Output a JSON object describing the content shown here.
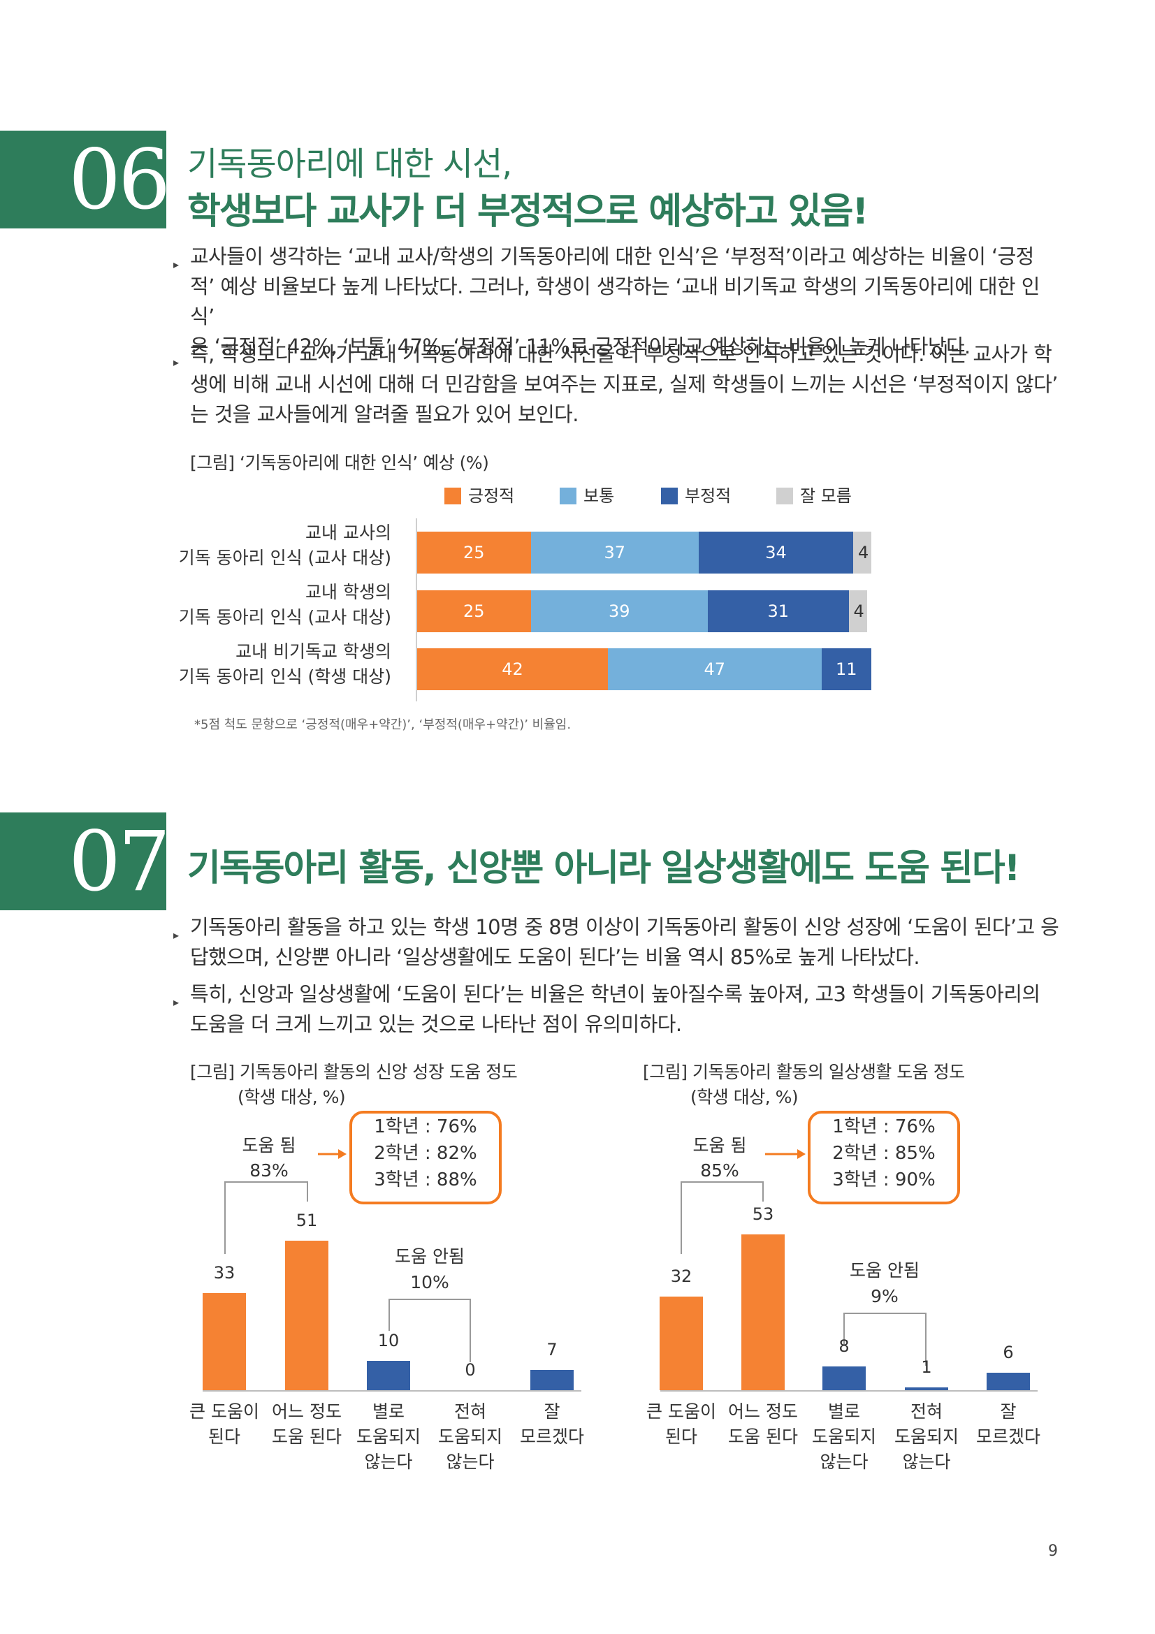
{
  "section06": {
    "number": "06",
    "title_line1": "기독동아리에 대한 시선,",
    "title_line2": "학생보다 교사가 더 부정적으로 예상하고 있음!",
    "paragraphs": [
      [
        "교사들이 생각하는 ‘교내 교사/학생의 기독동아리에 대한 인식’은 ‘부정적’이라고 예상하는 비율이 ‘긍정",
        "적’ 예상 비율보다 높게 나타났다. 그러나, 학생이 생각하는 ‘교내 비기독교 학생의 기독동아리에 대한 인식’",
        "은 ‘긍정적’ 42%, ‘보통’ 47%, ‘부정적’ 11%로 긍정적이라고 예상하는 비율이 높게 나타났다."
      ],
      [
        "즉, 학생보다 교사가 교내 기독동아리에 대한 시선을 더 부정적으로 인식하고 있는 것이다. 이는 교사가 학",
        "생에 비해 교내 시선에 대해 더 민감함을 보여주는 지표로, 실제 학생들이 느끼는 시선은 ‘부정적이지 않다’",
        "는 것을 교사들에게 알려줄 필요가 있어 보인다."
      ]
    ],
    "figure_caption": "[그림] ‘기독동아리에 대한 인식’ 예상 (%)",
    "footnote": "*5점 척도 문항으로 ‘긍정적(매우+약간)’, ‘부정적(매우+약간)’ 비율임.",
    "chart_data": {
      "type": "bar",
      "orientation": "horizontal-stacked",
      "categories": [
        [
          "교내 교사의",
          "기독 동아리 인식 (교사 대상)"
        ],
        [
          "교내 학생의",
          "기독 동아리 인식 (교사 대상)"
        ],
        [
          "교내 비기독교 학생의",
          "기독 동아리 인식 (학생 대상)"
        ]
      ],
      "series": [
        {
          "name": "긍정적",
          "color": "#f58233",
          "values": [
            25,
            25,
            42
          ]
        },
        {
          "name": "보통",
          "color": "#74b0db",
          "values": [
            37,
            39,
            47
          ]
        },
        {
          "name": "부정적",
          "color": "#3460a6",
          "values": [
            34,
            31,
            11
          ]
        },
        {
          "name": "잘 모름",
          "color": "#d0d0d0",
          "values": [
            4,
            4,
            0
          ]
        }
      ],
      "legend_position": "top"
    }
  },
  "section07": {
    "number": "07",
    "title": "기독동아리 활동, 신앙뿐 아니라 일상생활에도 도움 된다!",
    "paragraphs": [
      [
        "기독동아리 활동을 하고 있는 학생 10명 중 8명 이상이 기독동아리 활동이 신앙 성장에 ‘도움이 된다’고 응",
        "답했으며, 신앙뿐 아니라 ‘일상생활에도 도움이 된다’는 비율 역시 85%로 높게 나타났다."
      ],
      [
        "특히, 신앙과 일상생활에 ‘도움이 된다’는 비율은 학년이 높아질수록 높아져, 고3 학생들이 기독동아리의",
        "도움을 더 크게 느끼고 있는 것으로 나타난 점이 유의미하다."
      ]
    ],
    "charts": [
      {
        "caption_line1": "[그림] 기독동아리 활동의 신앙 성장 도움 정도",
        "caption_line2": "(학생 대상, %)",
        "help_label": "도움 됨",
        "help_value": "83%",
        "nohelp_label": "도움 안됨",
        "nohelp_value": "10%",
        "grade_box": [
          "1학년 : 76%",
          "2학년 : 82%",
          "3학년 : 88%"
        ],
        "chart_data": {
          "type": "bar",
          "categories": [
            [
              "큰 도움이",
              "된다"
            ],
            [
              "어느 정도",
              "도움 된다"
            ],
            [
              "별로",
              "도움되지",
              "않는다"
            ],
            [
              "전혀",
              "도움되지",
              "않는다"
            ],
            [
              "잘",
              "모르겠다"
            ]
          ],
          "values": [
            33,
            51,
            10,
            0,
            7
          ],
          "colors": [
            "#f58233",
            "#f58233",
            "#3460a6",
            "#3460a6",
            "#3460a6"
          ]
        }
      },
      {
        "caption_line1": "[그림] 기독동아리 활동의 일상생활 도움 정도",
        "caption_line2": "(학생 대상, %)",
        "help_label": "도움 됨",
        "help_value": "85%",
        "nohelp_label": "도움 안됨",
        "nohelp_value": "9%",
        "grade_box": [
          "1학년 : 76%",
          "2학년 : 85%",
          "3학년 : 90%"
        ],
        "chart_data": {
          "type": "bar",
          "categories": [
            [
              "큰 도움이",
              "된다"
            ],
            [
              "어느 정도",
              "도움 된다"
            ],
            [
              "별로",
              "도움되지",
              "않는다"
            ],
            [
              "전혀",
              "도움되지",
              "않는다"
            ],
            [
              "잘",
              "모르겠다"
            ]
          ],
          "values": [
            32,
            53,
            8,
            1,
            6
          ],
          "colors": [
            "#f58233",
            "#f58233",
            "#3460a6",
            "#3460a6",
            "#3460a6"
          ]
        }
      }
    ]
  },
  "page_number": "9"
}
